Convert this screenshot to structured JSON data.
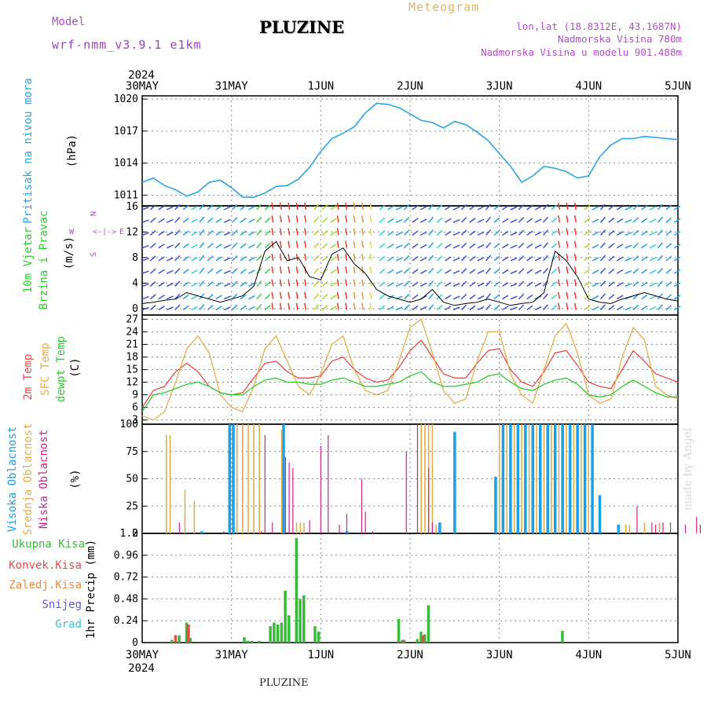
{
  "header": {
    "model_label": "Model",
    "model_name": "wrf-nmm_v3.9.1  e1km",
    "station": "PLUZINE",
    "product": "Meteogram",
    "lonlat": "lon,lat (18.8312E, 43.1687N)",
    "elevation": "Nadmorska Visina 780m",
    "model_elevation": "Nadmorska Visina u modelu 901.488m"
  },
  "footer": {
    "station": "PLUZINE",
    "credit": "made by Angel"
  },
  "time_axis": {
    "year": "2024",
    "days": [
      "30MAY",
      "31MAY",
      "1JUN",
      "2JUN",
      "3JUN",
      "4JUN",
      "5JUN"
    ],
    "range_hours": [
      0,
      144
    ]
  },
  "panels": {
    "pressure": {
      "label": "Pritisak na nivou mora",
      "unit": "(hPa)"
    },
    "wind": {
      "labels": [
        "10m Vjetar",
        "Brzina i Pravac"
      ],
      "unit": "(m/s)",
      "compass": [
        "N",
        "<",
        "-",
        "|",
        "-",
        ">",
        "E",
        "W",
        "S"
      ]
    },
    "temp": {
      "labels": [
        "2m Temp",
        "SFC Temp",
        "dewpt Temp"
      ],
      "unit": "(C)"
    },
    "cloud": {
      "labels": [
        "Visoka Oblacnost",
        "Srednja Oblacnost",
        "Niska Oblacnost"
      ],
      "unit": "(%)"
    },
    "precip": {
      "unit": "1hr Precip (mm)",
      "legend": [
        "Ukupna Kisa",
        "Konvek.Kisa",
        "Zaledj.Kisa",
        "Snijeg",
        "Grad"
      ]
    }
  },
  "colors": {
    "pressure": "#2aa4e6",
    "temp2m": "#e84a4a",
    "sfc": "#e3ad4a",
    "dewpt": "#2fcc2f",
    "cloud_high": "#1aa0e6",
    "cloud_mid": "#e3ad4a",
    "cloud_low": "#c8288c",
    "precip_total": "#3ab93a",
    "precip_conv": "#e84a4a",
    "precip_frz": "#f08a3a",
    "snow": "#5a5ae0",
    "hail": "#38c8c8",
    "text_model": "#b04fc8"
  },
  "chart_data": [
    {
      "type": "line",
      "title": "",
      "ylabel": "Pritisak na nivou mora (hPa)",
      "ylim": [
        1010,
        1020.3
      ],
      "yticks": [
        1011,
        1014,
        1017,
        1020
      ],
      "series": [
        {
          "name": "Pritisak na nivou mora",
          "x": [
            0,
            3,
            6,
            9,
            12,
            15,
            18,
            21,
            24,
            27,
            30,
            33,
            36,
            39,
            42,
            45,
            48,
            51,
            54,
            57,
            60,
            63,
            66,
            69,
            72,
            75,
            78,
            81,
            84,
            87,
            90,
            93,
            96,
            99,
            102,
            105,
            108,
            111,
            114,
            117,
            120,
            123,
            126,
            129,
            132,
            135,
            138,
            141,
            144
          ],
          "values": [
            1012.2,
            1012.6,
            1011.9,
            1011.5,
            1010.9,
            1011.3,
            1012.2,
            1012.4,
            1011.7,
            1010.8,
            1010.8,
            1011.2,
            1011.8,
            1011.9,
            1012.5,
            1013.6,
            1015.1,
            1016.3,
            1016.8,
            1017.4,
            1018.7,
            1019.6,
            1019.5,
            1019.2,
            1018.6,
            1018.0,
            1017.8,
            1017.3,
            1017.9,
            1017.6,
            1016.9,
            1016.1,
            1014.9,
            1013.7,
            1012.2,
            1012.8,
            1013.7,
            1013.5,
            1013.2,
            1012.6,
            1012.8,
            1014.6,
            1015.7,
            1016.3,
            1016.3,
            1016.5,
            1016.4,
            1016.3,
            1016.2
          ]
        }
      ]
    },
    {
      "type": "line",
      "title": "",
      "ylabel": "10m Vjetar Brzina i Pravac (m/s)",
      "ylim": [
        -1,
        16.1
      ],
      "yticks": [
        0,
        4,
        8,
        12,
        16
      ],
      "series": [
        {
          "name": "Brzina",
          "x": [
            0,
            3,
            6,
            9,
            12,
            15,
            18,
            21,
            24,
            27,
            30,
            33,
            36,
            39,
            42,
            45,
            48,
            51,
            54,
            57,
            60,
            63,
            66,
            69,
            72,
            75,
            78,
            81,
            84,
            87,
            90,
            93,
            96,
            99,
            102,
            105,
            108,
            111,
            114,
            117,
            120,
            123,
            126,
            129,
            132,
            135,
            138,
            141,
            144
          ],
          "values": [
            0.8,
            1.0,
            1.3,
            1.5,
            2.5,
            2.0,
            1.5,
            1.0,
            1.5,
            2.0,
            3.5,
            9.0,
            10.5,
            7.5,
            8.0,
            5.0,
            4.5,
            8.5,
            9.5,
            7.0,
            5.5,
            3.0,
            2.0,
            1.5,
            1.0,
            1.5,
            3.0,
            1.0,
            0.5,
            0.8,
            1.0,
            1.5,
            1.0,
            0.5,
            0.8,
            1.0,
            2.5,
            9.0,
            7.5,
            5.0,
            1.5,
            1.0,
            0.8,
            1.5,
            2.0,
            2.5,
            2.0,
            1.5,
            1.2
          ]
        }
      ]
    },
    {
      "type": "line",
      "title": "",
      "ylabel": "(C)",
      "ylim": [
        2,
        28
      ],
      "yticks": [
        3,
        6,
        9,
        12,
        15,
        18,
        21,
        24,
        27
      ],
      "series": [
        {
          "name": "2m Temp",
          "x": [
            0,
            3,
            6,
            9,
            12,
            15,
            18,
            21,
            24,
            27,
            30,
            33,
            36,
            39,
            42,
            45,
            48,
            51,
            54,
            57,
            60,
            63,
            66,
            69,
            72,
            75,
            78,
            81,
            84,
            87,
            90,
            93,
            96,
            99,
            102,
            105,
            108,
            111,
            114,
            117,
            120,
            123,
            126,
            129,
            132,
            135,
            138,
            141,
            144
          ],
          "values": [
            6,
            10,
            11,
            14.5,
            16.5,
            14.5,
            11,
            9.5,
            9,
            9.5,
            13,
            16.5,
            17,
            14.5,
            13,
            13,
            13.5,
            17,
            18,
            15,
            13,
            12,
            12.5,
            15.5,
            19.5,
            22,
            18,
            14,
            13,
            13,
            16.5,
            19.5,
            20,
            15,
            12,
            11,
            14.5,
            19,
            19.5,
            16,
            12,
            11,
            10.5,
            15,
            19.5,
            17,
            14,
            13,
            12
          ]
        },
        {
          "name": "SFC Temp",
          "x": [
            0,
            3,
            6,
            9,
            12,
            15,
            18,
            21,
            24,
            27,
            30,
            33,
            36,
            39,
            42,
            45,
            48,
            51,
            54,
            57,
            60,
            63,
            66,
            69,
            72,
            75,
            78,
            81,
            84,
            87,
            90,
            93,
            96,
            99,
            102,
            105,
            108,
            111,
            114,
            117,
            120,
            123,
            126,
            129,
            132,
            135,
            138,
            141,
            144
          ],
          "values": [
            4,
            3,
            5,
            12,
            20,
            23,
            19,
            9,
            6,
            5,
            11,
            20,
            23,
            17,
            11,
            9,
            14,
            21,
            23,
            15,
            10,
            9,
            10,
            17,
            25,
            27,
            19,
            10,
            7,
            8,
            17,
            24,
            24,
            14,
            9,
            7,
            15,
            23,
            26,
            19,
            9,
            7,
            8,
            18,
            25,
            22,
            11,
            9,
            8
          ]
        },
        {
          "name": "dewpt Temp",
          "x": [
            0,
            3,
            6,
            9,
            12,
            15,
            18,
            21,
            24,
            27,
            30,
            33,
            36,
            39,
            42,
            45,
            48,
            51,
            54,
            57,
            60,
            63,
            66,
            69,
            72,
            75,
            78,
            81,
            84,
            87,
            90,
            93,
            96,
            99,
            102,
            105,
            108,
            111,
            114,
            117,
            120,
            123,
            126,
            129,
            132,
            135,
            138,
            141,
            144
          ],
          "values": [
            5,
            9,
            9.5,
            10.5,
            11.5,
            12,
            11,
            9.5,
            9,
            9,
            11,
            12.5,
            13,
            12,
            12,
            11.5,
            11.5,
            12.5,
            13,
            12,
            11,
            11,
            11.5,
            12,
            13.5,
            14.5,
            12,
            11,
            11,
            11.5,
            12,
            13.5,
            14,
            12,
            10.5,
            10,
            11.5,
            12.5,
            13,
            11.5,
            9,
            8.5,
            9,
            11,
            12.5,
            11,
            9.5,
            8.5,
            8.5
          ]
        }
      ]
    },
    {
      "type": "bar",
      "title": "",
      "ylabel": "(%)",
      "ylim": [
        0,
        100
      ],
      "yticks": [
        0,
        25,
        50,
        75,
        100
      ],
      "series": [
        {
          "name": "Visoka Oblacnost",
          "x": [
            16,
            23.5,
            24.5,
            38,
            55,
            80,
            84,
            95,
            97,
            99,
            101,
            103,
            105,
            107,
            109,
            111,
            113,
            115,
            117,
            119,
            121,
            123,
            128
          ],
          "values": [
            2,
            100,
            100,
            100,
            2,
            10,
            93,
            52,
            100,
            100,
            100,
            100,
            100,
            100,
            100,
            100,
            100,
            100,
            100,
            100,
            100,
            35,
            8
          ]
        },
        {
          "name": "Srednja Oblacnost",
          "x": [
            6.5,
            7.5,
            11.5,
            14,
            25.5,
            27,
            28.5,
            30,
            31.5,
            37.5,
            41.5,
            42.5,
            43.5,
            75,
            76,
            77,
            78,
            79,
            96,
            98,
            100,
            102,
            104,
            106,
            108,
            110,
            112,
            114,
            116,
            118,
            120,
            130,
            131,
            135,
            139
          ],
          "values": [
            90,
            90,
            40,
            30,
            100,
            100,
            100,
            100,
            100,
            95,
            10,
            10,
            10,
            100,
            100,
            100,
            100,
            8,
            100,
            100,
            100,
            100,
            100,
            100,
            100,
            100,
            100,
            100,
            100,
            100,
            100,
            8,
            8,
            10,
            10
          ]
        },
        {
          "name": "Niska Oblacnost",
          "x": [
            10,
            22,
            32,
            33,
            35,
            38.5,
            39.5,
            40.5,
            45,
            48,
            50,
            53,
            55,
            59,
            60,
            62,
            71,
            74,
            77,
            78,
            133,
            137,
            138,
            140,
            142,
            146,
            149,
            150
          ],
          "values": [
            10,
            2,
            2,
            90,
            10,
            70,
            65,
            60,
            12,
            80,
            90,
            8,
            18,
            50,
            20,
            2,
            75,
            100,
            60,
            10,
            25,
            10,
            8,
            10,
            10,
            8,
            15,
            8
          ]
        }
      ]
    },
    {
      "type": "bar",
      "title": "",
      "ylabel": "1hr Precip (mm)",
      "ylim": [
        0,
        1.2
      ],
      "yticks": [
        0,
        0.24,
        0.48,
        0.72,
        0.96,
        1.2
      ],
      "series": [
        {
          "name": "Ukupna Kisa",
          "x": [
            8,
            10,
            12,
            13,
            27.5,
            28.5,
            29.5,
            31.5,
            34.5,
            35.5,
            36.5,
            37.5,
            38.5,
            39.5,
            41.5,
            42.5,
            43.5,
            46.5,
            47.5,
            69,
            70.5,
            74,
            75,
            76,
            77,
            113
          ],
          "values": [
            0.03,
            0.08,
            0.22,
            0.05,
            0.06,
            0.02,
            0.02,
            0.02,
            0.18,
            0.22,
            0.2,
            0.22,
            0.57,
            0.3,
            1.15,
            0.48,
            0.52,
            0.18,
            0.12,
            0.26,
            0.03,
            0.04,
            0.12,
            0.09,
            0.41,
            0.13
          ]
        },
        {
          "name": "Konvek.Kisa",
          "x": [
            9,
            12.5,
            70,
            75.5
          ],
          "values": [
            0.08,
            0.2,
            0.03,
            0.08
          ]
        }
      ]
    }
  ]
}
